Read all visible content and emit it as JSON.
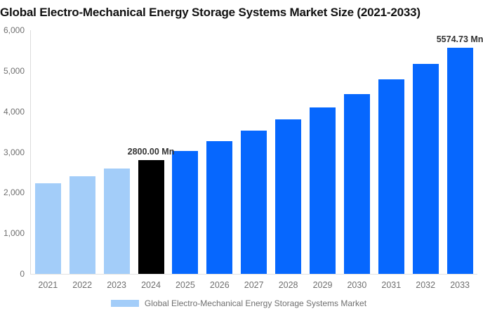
{
  "title": "Global Electro-Mechanical Energy Storage Systems Market Size (2021-2033)",
  "legend": {
    "label": "Global Electro-Mechanical Energy Storage Systems Market",
    "swatch_color": "#A3CDF9"
  },
  "colors": {
    "historical": "#A3CDF9",
    "highlight": "#000000",
    "forecast": "#0667FE",
    "axis_line": "#DCDCDC",
    "tick_text": "#6F6F6F",
    "data_label_text": "#333333",
    "title_text": "#111111",
    "background": "#FFFFFF"
  },
  "chart_data": {
    "type": "bar",
    "title": "Global Electro-Mechanical Energy Storage Systems Market Size (2021-2033)",
    "xlabel": "",
    "ylabel": "",
    "unit": "Mn",
    "categories": [
      "2021",
      "2022",
      "2023",
      "2024",
      "2025",
      "2026",
      "2027",
      "2028",
      "2029",
      "2030",
      "2031",
      "2032",
      "2033"
    ],
    "values": [
      2225.5,
      2402.6,
      2593.8,
      2800.0,
      3022.6,
      3262.9,
      3522.3,
      3802.3,
      4104.6,
      4430.9,
      4783.2,
      5163.4,
      5574.73
    ],
    "bar_roles": [
      "historical",
      "historical",
      "historical",
      "highlight",
      "forecast",
      "forecast",
      "forecast",
      "forecast",
      "forecast",
      "forecast",
      "forecast",
      "forecast",
      "forecast"
    ],
    "data_labels": [
      {
        "category": "2024",
        "text": "2800.00 Mn"
      },
      {
        "category": "2033",
        "text": "5574.73 Mn"
      }
    ],
    "ylim": [
      0,
      6000
    ],
    "yticks": [
      {
        "value": 0,
        "label": "0"
      },
      {
        "value": 1000,
        "label": "1,000"
      },
      {
        "value": 2000,
        "label": "2,000"
      },
      {
        "value": 3000,
        "label": "3,000"
      },
      {
        "value": 4000,
        "label": "4,000"
      },
      {
        "value": 5000,
        "label": "5,000"
      },
      {
        "value": 6000,
        "label": "6,000"
      }
    ],
    "grid": false,
    "legend_position": "bottom"
  }
}
